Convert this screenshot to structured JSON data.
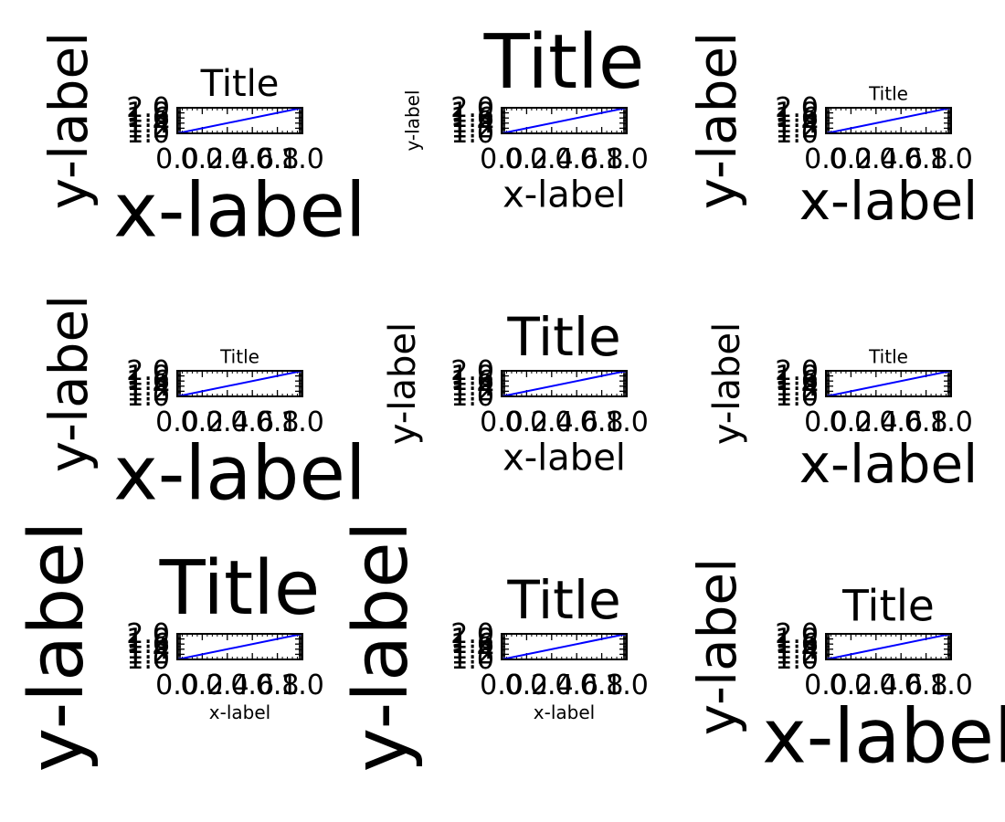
{
  "figure": {
    "rows": 3,
    "cols": 3,
    "background": "#ffffff"
  },
  "style": {
    "line_color": "#0000ff",
    "axes_color": "#000000",
    "text_color": "#000000"
  },
  "chart_data": [
    {
      "type": "line",
      "title": "Title",
      "xlabel": "x-label",
      "ylabel": "y-label",
      "title_size": "medium",
      "xlabel_size": "xx-large",
      "ylabel_size": "x-large",
      "x": [
        0.0,
        1.0
      ],
      "series": [
        {
          "values": [
            1.0,
            2.0
          ]
        }
      ],
      "xlim": [
        0.0,
        1.0
      ],
      "ylim": [
        1.0,
        2.0
      ],
      "xticks": [
        "0.0",
        "0.2",
        "0.4",
        "0.6",
        "0.8",
        "1.0"
      ],
      "yticks": [
        "1.0",
        "1.2",
        "1.4",
        "1.6",
        "1.8",
        "2.0"
      ],
      "grid": false
    },
    {
      "type": "line",
      "title": "Title",
      "xlabel": "x-label",
      "ylabel": "y-label",
      "title_size": "xx-large",
      "xlabel_size": "medium",
      "ylabel_size": "small",
      "x": [
        0.0,
        1.0
      ],
      "series": [
        {
          "values": [
            1.0,
            2.0
          ]
        }
      ],
      "xlim": [
        0.0,
        1.0
      ],
      "ylim": [
        1.0,
        2.0
      ],
      "xticks": [
        "0.0",
        "0.2",
        "0.4",
        "0.6",
        "0.8",
        "1.0"
      ],
      "yticks": [
        "1.0",
        "1.2",
        "1.4",
        "1.6",
        "1.8",
        "2.0"
      ],
      "grid": false
    },
    {
      "type": "line",
      "title": "Title",
      "xlabel": "x-label",
      "ylabel": "y-label",
      "title_size": "small",
      "xlabel_size": "x-large",
      "ylabel_size": "x-large",
      "x": [
        0.0,
        1.0
      ],
      "series": [
        {
          "values": [
            1.0,
            2.0
          ]
        }
      ],
      "xlim": [
        0.0,
        1.0
      ],
      "ylim": [
        1.0,
        2.0
      ],
      "xticks": [
        "0.0",
        "0.2",
        "0.4",
        "0.6",
        "0.8",
        "1.0"
      ],
      "yticks": [
        "1.0",
        "1.2",
        "1.4",
        "1.6",
        "1.8",
        "2.0"
      ],
      "grid": false
    },
    {
      "type": "line",
      "title": "Title",
      "xlabel": "x-label",
      "ylabel": "y-label",
      "title_size": "small",
      "xlabel_size": "xx-large",
      "ylabel_size": "x-large",
      "x": [
        0.0,
        1.0
      ],
      "series": [
        {
          "values": [
            1.0,
            2.0
          ]
        }
      ],
      "xlim": [
        0.0,
        1.0
      ],
      "ylim": [
        1.0,
        2.0
      ],
      "xticks": [
        "0.0",
        "0.2",
        "0.4",
        "0.6",
        "0.8",
        "1.0"
      ],
      "yticks": [
        "1.0",
        "1.2",
        "1.4",
        "1.6",
        "1.8",
        "2.0"
      ],
      "grid": false
    },
    {
      "type": "line",
      "title": "Title",
      "xlabel": "x-label",
      "ylabel": "y-label",
      "title_size": "x-large",
      "xlabel_size": "medium",
      "ylabel_size": "medium",
      "x": [
        0.0,
        1.0
      ],
      "series": [
        {
          "values": [
            1.0,
            2.0
          ]
        }
      ],
      "xlim": [
        0.0,
        1.0
      ],
      "ylim": [
        1.0,
        2.0
      ],
      "xticks": [
        "0.0",
        "0.2",
        "0.4",
        "0.6",
        "0.8",
        "1.0"
      ],
      "yticks": [
        "1.0",
        "1.2",
        "1.4",
        "1.6",
        "1.8",
        "2.0"
      ],
      "grid": false
    },
    {
      "type": "line",
      "title": "Title",
      "xlabel": "x-label",
      "ylabel": "y-label",
      "title_size": "small",
      "xlabel_size": "x-large",
      "ylabel_size": "medium",
      "x": [
        0.0,
        1.0
      ],
      "series": [
        {
          "values": [
            1.0,
            2.0
          ]
        }
      ],
      "xlim": [
        0.0,
        1.0
      ],
      "ylim": [
        1.0,
        2.0
      ],
      "xticks": [
        "0.0",
        "0.2",
        "0.4",
        "0.6",
        "0.8",
        "1.0"
      ],
      "yticks": [
        "1.0",
        "1.2",
        "1.4",
        "1.6",
        "1.8",
        "2.0"
      ],
      "grid": false
    },
    {
      "type": "line",
      "title": "Title",
      "xlabel": "x-label",
      "ylabel": "y-label",
      "title_size": "xx-large",
      "xlabel_size": "small",
      "ylabel_size": "xx-large",
      "x": [
        0.0,
        1.0
      ],
      "series": [
        {
          "values": [
            1.0,
            2.0
          ]
        }
      ],
      "xlim": [
        0.0,
        1.0
      ],
      "ylim": [
        1.0,
        2.0
      ],
      "xticks": [
        "0.0",
        "0.2",
        "0.4",
        "0.6",
        "0.8",
        "1.0"
      ],
      "yticks": [
        "1.0",
        "1.2",
        "1.4",
        "1.6",
        "1.8",
        "2.0"
      ],
      "grid": false
    },
    {
      "type": "line",
      "title": "Title",
      "xlabel": "x-label",
      "ylabel": "y-label",
      "title_size": "x-large",
      "xlabel_size": "small",
      "ylabel_size": "xx-large",
      "x": [
        0.0,
        1.0
      ],
      "series": [
        {
          "values": [
            1.0,
            2.0
          ]
        }
      ],
      "xlim": [
        0.0,
        1.0
      ],
      "ylim": [
        1.0,
        2.0
      ],
      "xticks": [
        "0.0",
        "0.2",
        "0.4",
        "0.6",
        "0.8",
        "1.0"
      ],
      "yticks": [
        "1.0",
        "1.2",
        "1.4",
        "1.6",
        "1.8",
        "2.0"
      ],
      "grid": false
    },
    {
      "type": "line",
      "title": "Title",
      "xlabel": "x-label",
      "ylabel": "y-label",
      "title_size": "large",
      "xlabel_size": "xx-large",
      "ylabel_size": "x-large",
      "x": [
        0.0,
        1.0
      ],
      "series": [
        {
          "values": [
            1.0,
            2.0
          ]
        }
      ],
      "xlim": [
        0.0,
        1.0
      ],
      "ylim": [
        1.0,
        2.0
      ],
      "xticks": [
        "0.0",
        "0.2",
        "0.4",
        "0.6",
        "0.8",
        "1.0"
      ],
      "yticks": [
        "1.0",
        "1.2",
        "1.4",
        "1.6",
        "1.8",
        "2.0"
      ],
      "grid": false
    }
  ]
}
